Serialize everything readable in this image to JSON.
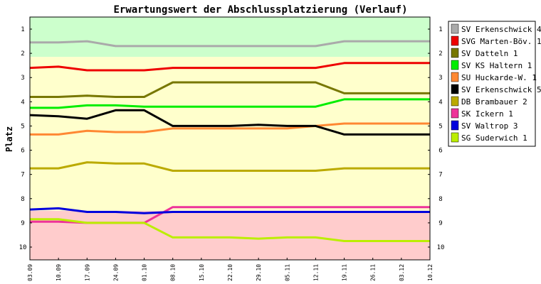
{
  "chart_data": {
    "type": "line",
    "title": "Erwartungswert der Abschlussplatzierung (Verlauf)",
    "ylabel": "Platz",
    "xlabel": "",
    "ylim": [
      1,
      10
    ],
    "y_inverted": true,
    "y_ticks": [
      1,
      2,
      3,
      4,
      5,
      6,
      7,
      8,
      9,
      10
    ],
    "x": [
      "03.09",
      "10.09",
      "17.09",
      "24.09",
      "01.10",
      "08.10",
      "15.10",
      "22.10",
      "29.10",
      "05.11",
      "12.11",
      "19.11",
      "26.11",
      "03.12",
      "10.12"
    ],
    "zones": [
      {
        "from": 0.4,
        "to": 2.15,
        "color": "#ccffcc"
      },
      {
        "from": 2.15,
        "to": 8.5,
        "color": "#ffffcc"
      },
      {
        "from": 8.5,
        "to": 10.6,
        "color": "#ffcccc"
      }
    ],
    "grid": false,
    "legend_position": "right",
    "series": [
      {
        "name": "SV Erkenschwick 4",
        "color": "#aaaaaa",
        "values": [
          1.55,
          1.55,
          1.5,
          1.7,
          1.7,
          1.7,
          1.7,
          1.7,
          1.7,
          1.7,
          1.7,
          1.5,
          1.5,
          1.5,
          1.5
        ]
      },
      {
        "name": "SVG Marten-Böv. 1",
        "color": "#ee0000",
        "values": [
          2.6,
          2.55,
          2.7,
          2.7,
          2.7,
          2.6,
          2.6,
          2.6,
          2.6,
          2.6,
          2.6,
          2.4,
          2.4,
          2.4,
          2.4
        ]
      },
      {
        "name": "SV Datteln 1",
        "color": "#777700",
        "values": [
          3.8,
          3.8,
          3.75,
          3.8,
          3.8,
          3.2,
          3.2,
          3.2,
          3.2,
          3.2,
          3.2,
          3.65,
          3.65,
          3.65,
          3.65
        ]
      },
      {
        "name": "SV KS Haltern 1",
        "color": "#00ee00",
        "values": [
          4.25,
          4.25,
          4.15,
          4.15,
          4.2,
          4.2,
          4.2,
          4.2,
          4.2,
          4.2,
          4.2,
          3.9,
          3.9,
          3.9,
          3.9
        ]
      },
      {
        "name": "SU Huckarde-W. 1",
        "color": "#ff8833",
        "values": [
          5.35,
          5.35,
          5.2,
          5.25,
          5.25,
          5.1,
          5.1,
          5.1,
          5.1,
          5.1,
          5.0,
          4.9,
          4.9,
          4.9,
          4.9
        ]
      },
      {
        "name": "SV Erkenschwick 5",
        "color": "#000000",
        "values": [
          4.55,
          4.6,
          4.7,
          4.35,
          4.35,
          5.0,
          5.0,
          5.0,
          4.95,
          5.0,
          5.0,
          5.35,
          5.35,
          5.35,
          5.35
        ]
      },
      {
        "name": "DB Brambauer 2",
        "color": "#bbaa00",
        "values": [
          6.75,
          6.75,
          6.5,
          6.55,
          6.55,
          6.85,
          6.85,
          6.85,
          6.85,
          6.85,
          6.85,
          6.75,
          6.75,
          6.75,
          6.75
        ]
      },
      {
        "name": "SK Ickern 1",
        "color": "#ee3399",
        "values": [
          8.95,
          8.95,
          9.0,
          9.0,
          9.0,
          8.35,
          8.35,
          8.35,
          8.35,
          8.35,
          8.35,
          8.35,
          8.35,
          8.35,
          8.35
        ]
      },
      {
        "name": "SV Waltrop 3",
        "color": "#0000dd",
        "values": [
          8.45,
          8.4,
          8.55,
          8.55,
          8.6,
          8.55,
          8.55,
          8.55,
          8.55,
          8.55,
          8.55,
          8.55,
          8.55,
          8.55,
          8.55
        ]
      },
      {
        "name": "SG Suderwich 1",
        "color": "#bbee00",
        "values": [
          8.85,
          8.85,
          9.0,
          9.0,
          9.0,
          9.6,
          9.6,
          9.6,
          9.65,
          9.6,
          9.6,
          9.75,
          9.75,
          9.75,
          9.75
        ]
      }
    ]
  }
}
